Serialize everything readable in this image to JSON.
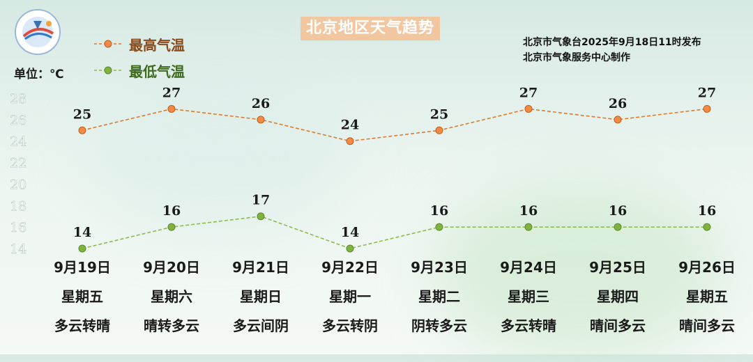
{
  "title": "北京地区天气趋势",
  "unit_label": "单位：℃",
  "publisher": {
    "line1": "北京市气象台2025年9月18日11时发布",
    "line2": "北京市气象服务中心制作"
  },
  "legend": {
    "high": "最高气温",
    "low": "最低气温"
  },
  "colors": {
    "high": "#e07a2f",
    "low": "#8dbb4c",
    "title_bg": "#f2c7a0"
  },
  "chart_data": {
    "type": "line",
    "categories": [
      "9月19日",
      "9月20日",
      "9月21日",
      "9月22日",
      "9月23日",
      "9月24日",
      "9月25日",
      "9月26日"
    ],
    "series": [
      {
        "name": "最高气温",
        "values": [
          25,
          27,
          26,
          24,
          25,
          27,
          26,
          27
        ]
      },
      {
        "name": "最低气温",
        "values": [
          14,
          16,
          17,
          14,
          16,
          16,
          16,
          16
        ]
      }
    ],
    "yticks": [
      14,
      16,
      18,
      20,
      22,
      24,
      26,
      28
    ],
    "ylim": [
      14,
      28
    ],
    "grid": false,
    "legend_position": "top-left"
  },
  "days": [
    {
      "date": "9月19日",
      "weekday": "星期五",
      "weather": "多云转晴"
    },
    {
      "date": "9月20日",
      "weekday": "星期六",
      "weather": "晴转多云"
    },
    {
      "date": "9月21日",
      "weekday": "星期日",
      "weather": "多云间阴"
    },
    {
      "date": "9月22日",
      "weekday": "星期一",
      "weather": "多云转阴"
    },
    {
      "date": "9月23日",
      "weekday": "星期二",
      "weather": "阴转多云"
    },
    {
      "date": "9月24日",
      "weekday": "星期三",
      "weather": "多云转晴"
    },
    {
      "date": "9月25日",
      "weekday": "星期四",
      "weather": "晴间多云"
    },
    {
      "date": "9月26日",
      "weekday": "星期五",
      "weather": "晴间多云"
    }
  ]
}
